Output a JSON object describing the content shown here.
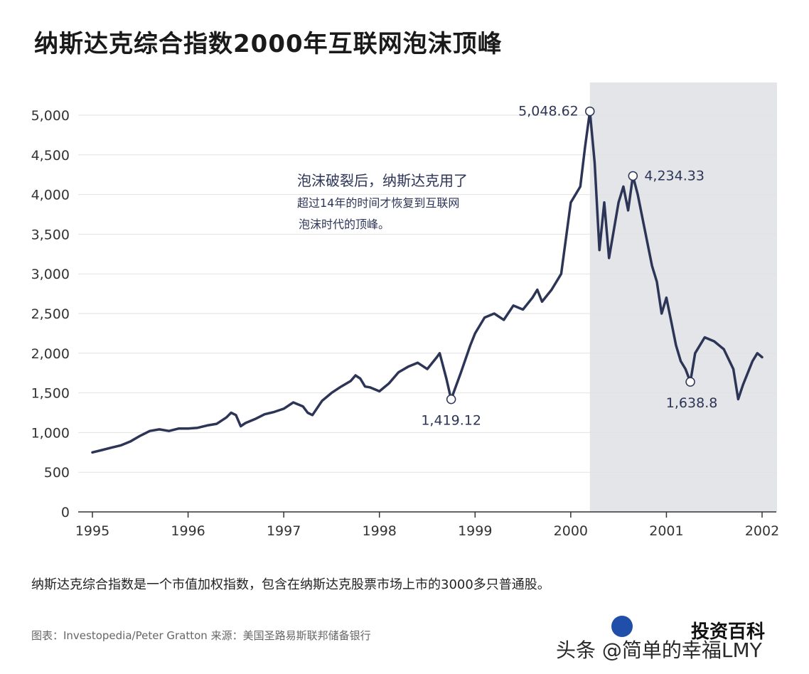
{
  "title": "纳斯达克综合指数2000年互联网泡沫顶峰",
  "annotation": {
    "line1": "泡沫破裂后，纳斯达克用了",
    "line2": "超过14年的时间才恢复到互联网",
    "line3": "泡沫时代的顶峰。"
  },
  "description": "纳斯达克综合指数是一个市值加权指数，包含在纳斯达克股票市场上市的3000多只普通股。",
  "source": "图表：Investopedia/Peter Gratton 来源：美国圣路易斯联邦储备银行",
  "logo_text": "投资百科",
  "watermark": "头条 @简单的幸福LMY",
  "chart_data": {
    "type": "line",
    "title": "纳斯达克综合指数2000年互联网泡沫顶峰",
    "xlabel": "",
    "ylabel": "",
    "xlim": [
      1995.0,
      2002.0
    ],
    "ylim": [
      0,
      5000
    ],
    "x_ticks": [
      "1995",
      "1996",
      "1997",
      "1998",
      "1999",
      "2000",
      "2001",
      "2002"
    ],
    "y_ticks": [
      "0",
      "500",
      "1,000",
      "1,500",
      "2,000",
      "2,500",
      "3,000",
      "3,500",
      "4,000",
      "4,500",
      "5,000"
    ],
    "grid": "horizontal",
    "shaded_region": [
      2000.2,
      2002.1
    ],
    "series": [
      {
        "color": "#2d3557",
        "points": [
          [
            1995.0,
            750
          ],
          [
            1995.1,
            780
          ],
          [
            1995.2,
            810
          ],
          [
            1995.3,
            840
          ],
          [
            1995.4,
            890
          ],
          [
            1995.5,
            960
          ],
          [
            1995.6,
            1020
          ],
          [
            1995.7,
            1040
          ],
          [
            1995.8,
            1020
          ],
          [
            1995.9,
            1050
          ],
          [
            1996.0,
            1050
          ],
          [
            1996.1,
            1060
          ],
          [
            1996.2,
            1090
          ],
          [
            1996.3,
            1110
          ],
          [
            1996.4,
            1190
          ],
          [
            1996.45,
            1250
          ],
          [
            1996.5,
            1220
          ],
          [
            1996.55,
            1080
          ],
          [
            1996.6,
            1120
          ],
          [
            1996.7,
            1170
          ],
          [
            1996.8,
            1230
          ],
          [
            1996.9,
            1260
          ],
          [
            1997.0,
            1300
          ],
          [
            1997.1,
            1380
          ],
          [
            1997.2,
            1330
          ],
          [
            1997.25,
            1250
          ],
          [
            1997.3,
            1220
          ],
          [
            1997.4,
            1400
          ],
          [
            1997.5,
            1500
          ],
          [
            1997.6,
            1580
          ],
          [
            1997.7,
            1650
          ],
          [
            1997.75,
            1720
          ],
          [
            1997.8,
            1680
          ],
          [
            1997.85,
            1580
          ],
          [
            1997.9,
            1570
          ],
          [
            1998.0,
            1520
          ],
          [
            1998.1,
            1620
          ],
          [
            1998.2,
            1760
          ],
          [
            1998.3,
            1830
          ],
          [
            1998.4,
            1880
          ],
          [
            1998.5,
            1800
          ],
          [
            1998.6,
            1950
          ],
          [
            1998.63,
            2000
          ],
          [
            1998.7,
            1680
          ],
          [
            1998.75,
            1419.12
          ],
          [
            1998.85,
            1750
          ],
          [
            1998.95,
            2100
          ],
          [
            1999.0,
            2250
          ],
          [
            1999.1,
            2450
          ],
          [
            1999.2,
            2500
          ],
          [
            1999.3,
            2420
          ],
          [
            1999.4,
            2600
          ],
          [
            1999.5,
            2550
          ],
          [
            1999.6,
            2700
          ],
          [
            1999.65,
            2800
          ],
          [
            1999.7,
            2650
          ],
          [
            1999.8,
            2800
          ],
          [
            1999.9,
            3000
          ],
          [
            2000.0,
            3900
          ],
          [
            2000.1,
            4100
          ],
          [
            2000.15,
            4600
          ],
          [
            2000.2,
            5048.62
          ],
          [
            2000.25,
            4400
          ],
          [
            2000.3,
            3300
          ],
          [
            2000.35,
            3900
          ],
          [
            2000.4,
            3200
          ],
          [
            2000.5,
            3900
          ],
          [
            2000.55,
            4100
          ],
          [
            2000.6,
            3800
          ],
          [
            2000.65,
            4234.33
          ],
          [
            2000.7,
            4000
          ],
          [
            2000.75,
            3700
          ],
          [
            2000.8,
            3400
          ],
          [
            2000.85,
            3100
          ],
          [
            2000.9,
            2900
          ],
          [
            2000.95,
            2500
          ],
          [
            2001.0,
            2700
          ],
          [
            2001.05,
            2400
          ],
          [
            2001.1,
            2100
          ],
          [
            2001.15,
            1900
          ],
          [
            2001.2,
            1800
          ],
          [
            2001.25,
            1638.8
          ],
          [
            2001.3,
            2000
          ],
          [
            2001.4,
            2200
          ],
          [
            2001.5,
            2150
          ],
          [
            2001.6,
            2050
          ],
          [
            2001.7,
            1800
          ],
          [
            2001.75,
            1420
          ],
          [
            2001.8,
            1600
          ],
          [
            2001.9,
            1900
          ],
          [
            2001.95,
            2000
          ],
          [
            2002.0,
            1950
          ]
        ]
      }
    ],
    "point_labels": [
      {
        "x": 2000.2,
        "y": 5048.62,
        "text": "5,048.62"
      },
      {
        "x": 2000.65,
        "y": 4234.33,
        "text": "4,234.33"
      },
      {
        "x": 1998.75,
        "y": 1419.12,
        "text": "1,419.12"
      },
      {
        "x": 2001.25,
        "y": 1638.8,
        "text": "1,638.8"
      }
    ]
  }
}
